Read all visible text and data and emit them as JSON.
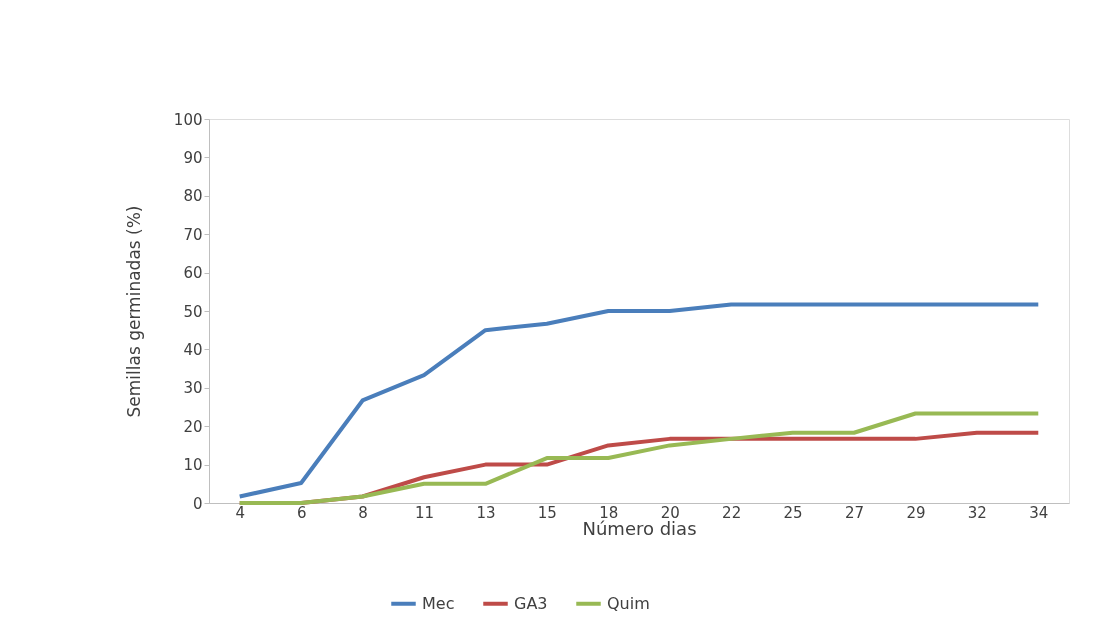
{
  "chart_data": {
    "type": "line",
    "xlabel": "Número dias",
    "ylabel": "Semillas germinadas (%)",
    "categories": [
      "4",
      "6",
      "8",
      "11",
      "13",
      "15",
      "18",
      "20",
      "22",
      "25",
      "27",
      "29",
      "32",
      "34"
    ],
    "ylim": [
      0,
      100
    ],
    "yticks": [
      0,
      10,
      20,
      30,
      40,
      50,
      60,
      70,
      80,
      90,
      100
    ],
    "grid": false,
    "legend": "bottom",
    "marker": "none",
    "line_style": "solid",
    "series": [
      {
        "name": "Mec",
        "color": "#4a7ebb",
        "values": [
          1.7,
          5.2,
          26.7,
          33.3,
          45,
          46.7,
          50,
          50,
          51.7,
          51.7,
          51.7,
          51.7,
          51.7,
          51.7
        ]
      },
      {
        "name": "GA3",
        "color": "#be4b48",
        "values": [
          0,
          0,
          1.7,
          6.7,
          10,
          10,
          15,
          16.7,
          16.7,
          16.7,
          16.7,
          16.7,
          18.3,
          18.3
        ]
      },
      {
        "name": "Quim",
        "color": "#98b954",
        "values": [
          0,
          0,
          1.7,
          5,
          5,
          11.7,
          11.7,
          15,
          16.7,
          18.3,
          18.3,
          23.3,
          23.3,
          23.3
        ]
      }
    ]
  }
}
